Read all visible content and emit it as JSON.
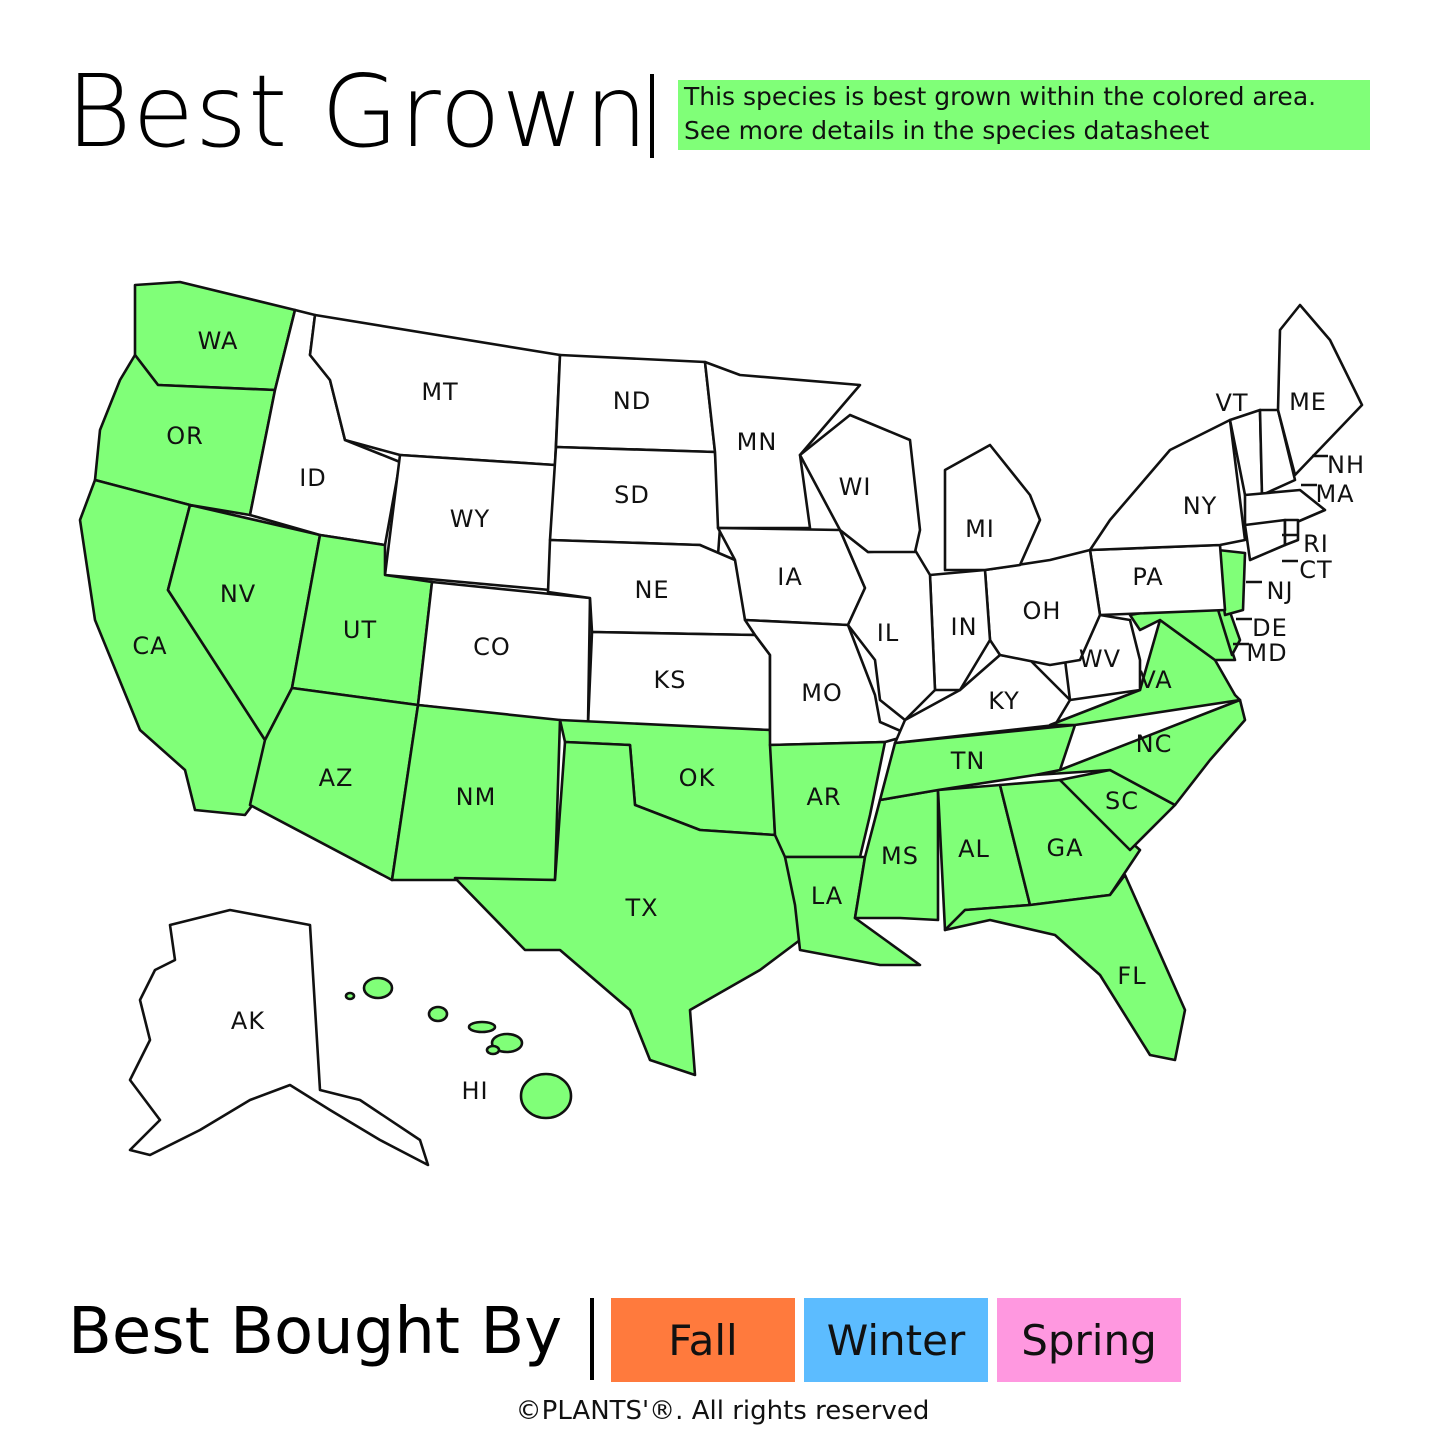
{
  "header": {
    "title": "Best Grown",
    "note_lines": [
      "This species is best grown within the colored area.",
      "See more details in the species datasheet"
    ]
  },
  "map": {
    "highlight_color": "#80ff78",
    "base_color": "#ffffff",
    "states": [
      {
        "abbr": "WA",
        "grown": true
      },
      {
        "abbr": "OR",
        "grown": true
      },
      {
        "abbr": "CA",
        "grown": true
      },
      {
        "abbr": "NV",
        "grown": true
      },
      {
        "abbr": "ID",
        "grown": false
      },
      {
        "abbr": "MT",
        "grown": false
      },
      {
        "abbr": "WY",
        "grown": false
      },
      {
        "abbr": "UT",
        "grown": true
      },
      {
        "abbr": "CO",
        "grown": false
      },
      {
        "abbr": "AZ",
        "grown": true
      },
      {
        "abbr": "NM",
        "grown": true
      },
      {
        "abbr": "ND",
        "grown": false
      },
      {
        "abbr": "SD",
        "grown": false
      },
      {
        "abbr": "NE",
        "grown": false
      },
      {
        "abbr": "KS",
        "grown": false
      },
      {
        "abbr": "OK",
        "grown": true
      },
      {
        "abbr": "TX",
        "grown": true
      },
      {
        "abbr": "MN",
        "grown": false
      },
      {
        "abbr": "IA",
        "grown": false
      },
      {
        "abbr": "MO",
        "grown": false
      },
      {
        "abbr": "AR",
        "grown": true
      },
      {
        "abbr": "LA",
        "grown": true
      },
      {
        "abbr": "MS",
        "grown": true
      },
      {
        "abbr": "AL",
        "grown": true
      },
      {
        "abbr": "GA",
        "grown": true
      },
      {
        "abbr": "FL",
        "grown": true
      },
      {
        "abbr": "SC",
        "grown": true
      },
      {
        "abbr": "NC",
        "grown": true
      },
      {
        "abbr": "TN",
        "grown": true
      },
      {
        "abbr": "KY",
        "grown": false
      },
      {
        "abbr": "VA",
        "grown": true
      },
      {
        "abbr": "WV",
        "grown": false
      },
      {
        "abbr": "MD",
        "grown": true
      },
      {
        "abbr": "DE",
        "grown": true
      },
      {
        "abbr": "NJ",
        "grown": true
      },
      {
        "abbr": "PA",
        "grown": false
      },
      {
        "abbr": "OH",
        "grown": false
      },
      {
        "abbr": "IN",
        "grown": false
      },
      {
        "abbr": "IL",
        "grown": false
      },
      {
        "abbr": "WI",
        "grown": false
      },
      {
        "abbr": "MI",
        "grown": false
      },
      {
        "abbr": "NY",
        "grown": false
      },
      {
        "abbr": "VT",
        "grown": false
      },
      {
        "abbr": "NH",
        "grown": false
      },
      {
        "abbr": "ME",
        "grown": false
      },
      {
        "abbr": "MA",
        "grown": false
      },
      {
        "abbr": "CT",
        "grown": false
      },
      {
        "abbr": "RI",
        "grown": false
      },
      {
        "abbr": "AK",
        "grown": false
      },
      {
        "abbr": "HI",
        "grown": true
      }
    ]
  },
  "footer": {
    "subtitle": "Best Bought By",
    "seasons": [
      {
        "label": "Fall",
        "color": "#ff7a3d"
      },
      {
        "label": "Winter",
        "color": "#5cbcff"
      },
      {
        "label": "Spring",
        "color": "#ff98e0"
      }
    ],
    "copyright": "©PLANTS'®. All rights reserved"
  }
}
